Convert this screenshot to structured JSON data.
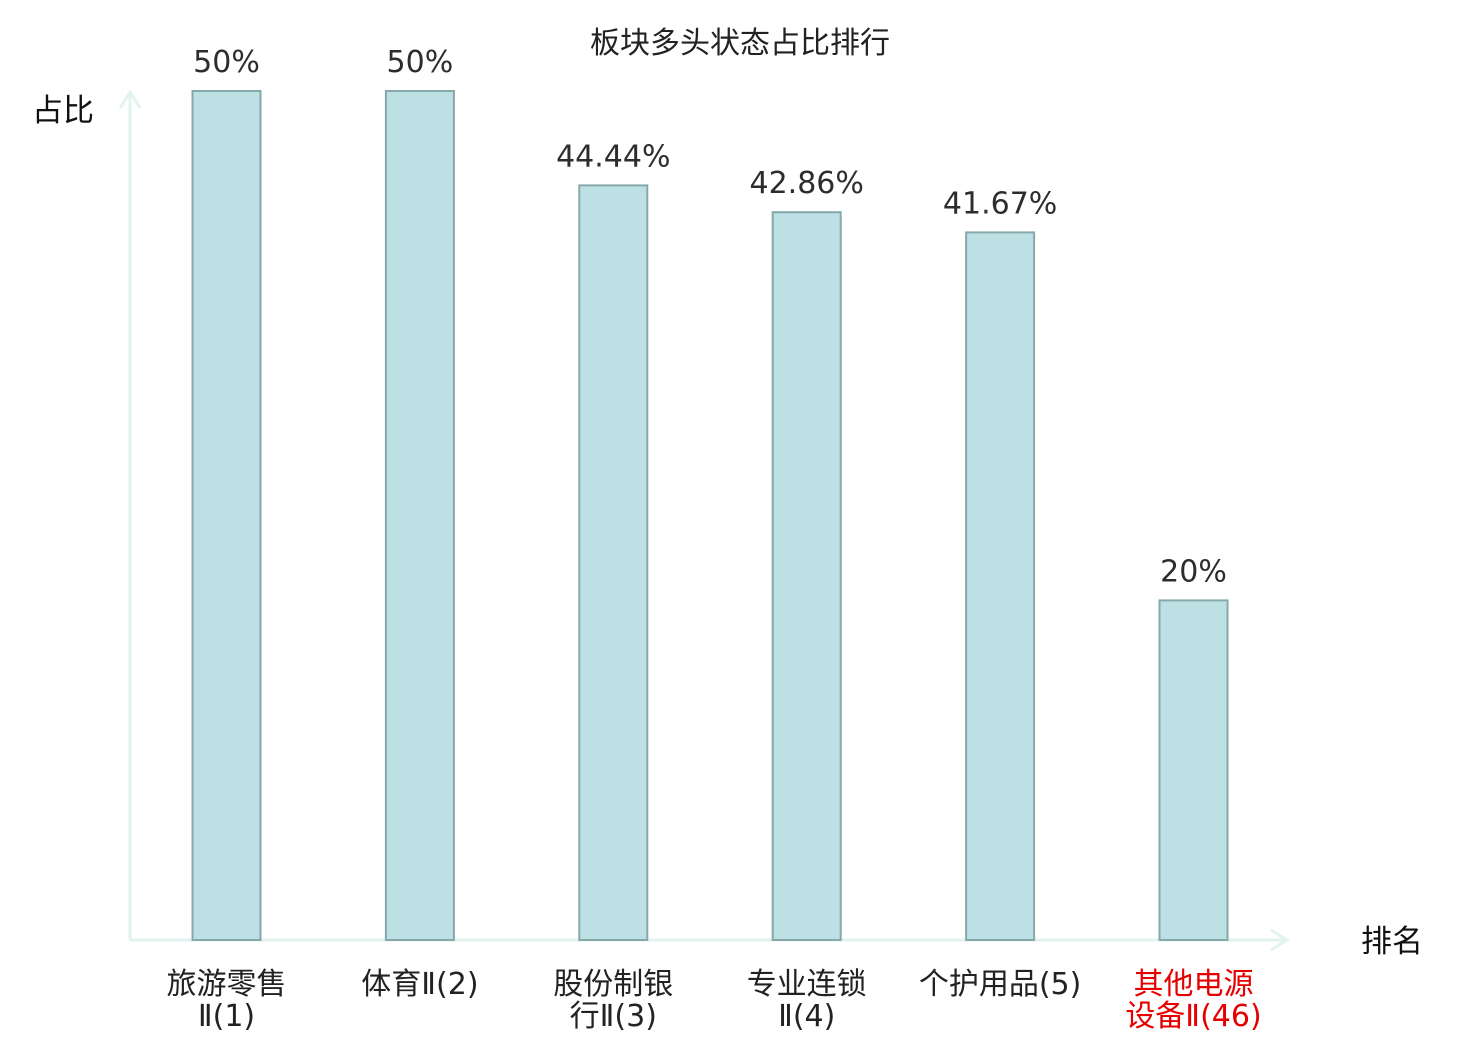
{
  "chart_data": {
    "type": "bar",
    "title": "板块多头状态占比排行",
    "ylabel": "占比",
    "xlabel": "排名",
    "ylim": [
      0,
      50
    ],
    "grid": false,
    "categories": [
      [
        "旅游零售",
        "Ⅱ(1)"
      ],
      [
        "体育Ⅱ(2)"
      ],
      [
        "股份制银",
        "行Ⅱ(3)"
      ],
      [
        "专业连锁",
        "Ⅱ(4)"
      ],
      [
        "个护用品(5)"
      ],
      [
        "其他电源",
        "设备Ⅱ(46)"
      ]
    ],
    "values": [
      50,
      50,
      44.44,
      42.86,
      41.67,
      20
    ],
    "value_labels": [
      "50%",
      "50%",
      "44.44%",
      "42.86%",
      "41.67%",
      "20%"
    ],
    "highlight_index": 5,
    "colors": {
      "bar_fill": "#bce0e3",
      "bar_stroke": "#87a8aa",
      "axis": "#e0f3f1",
      "highlight_text": "#e60000"
    }
  }
}
